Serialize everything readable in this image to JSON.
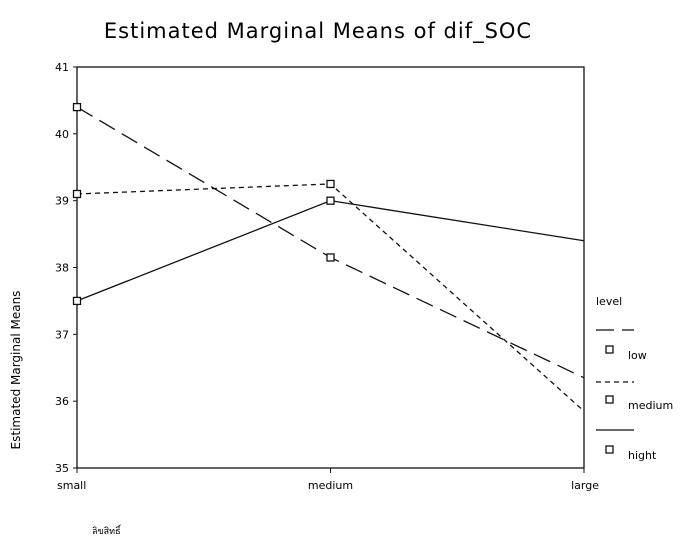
{
  "chart_data": {
    "type": "line",
    "title": "Estimated Marginal Means of dif_SOC",
    "xlabel": "",
    "ylabel": "Estimated Marginal Means",
    "categories": [
      "small",
      "medium",
      "large"
    ],
    "ylim": [
      35,
      41
    ],
    "yticks": [
      "35",
      "36",
      "37",
      "38",
      "39",
      "40",
      "41"
    ],
    "grid": false,
    "legend": {
      "title": "level",
      "position": "right"
    },
    "series": [
      {
        "name": "low",
        "values": [
          40.4,
          38.15,
          36.35
        ],
        "dash": "long-dash",
        "markers": [
          true,
          true,
          false
        ]
      },
      {
        "name": "medium",
        "values": [
          39.1,
          39.25,
          35.85
        ],
        "dash": "short-dash",
        "markers": [
          true,
          true,
          false
        ]
      },
      {
        "name": "hight",
        "values": [
          37.5,
          39.0,
          38.4
        ],
        "dash": "solid",
        "markers": [
          true,
          true,
          false
        ]
      }
    ],
    "footnote": "ลิขสิทธิ์"
  }
}
